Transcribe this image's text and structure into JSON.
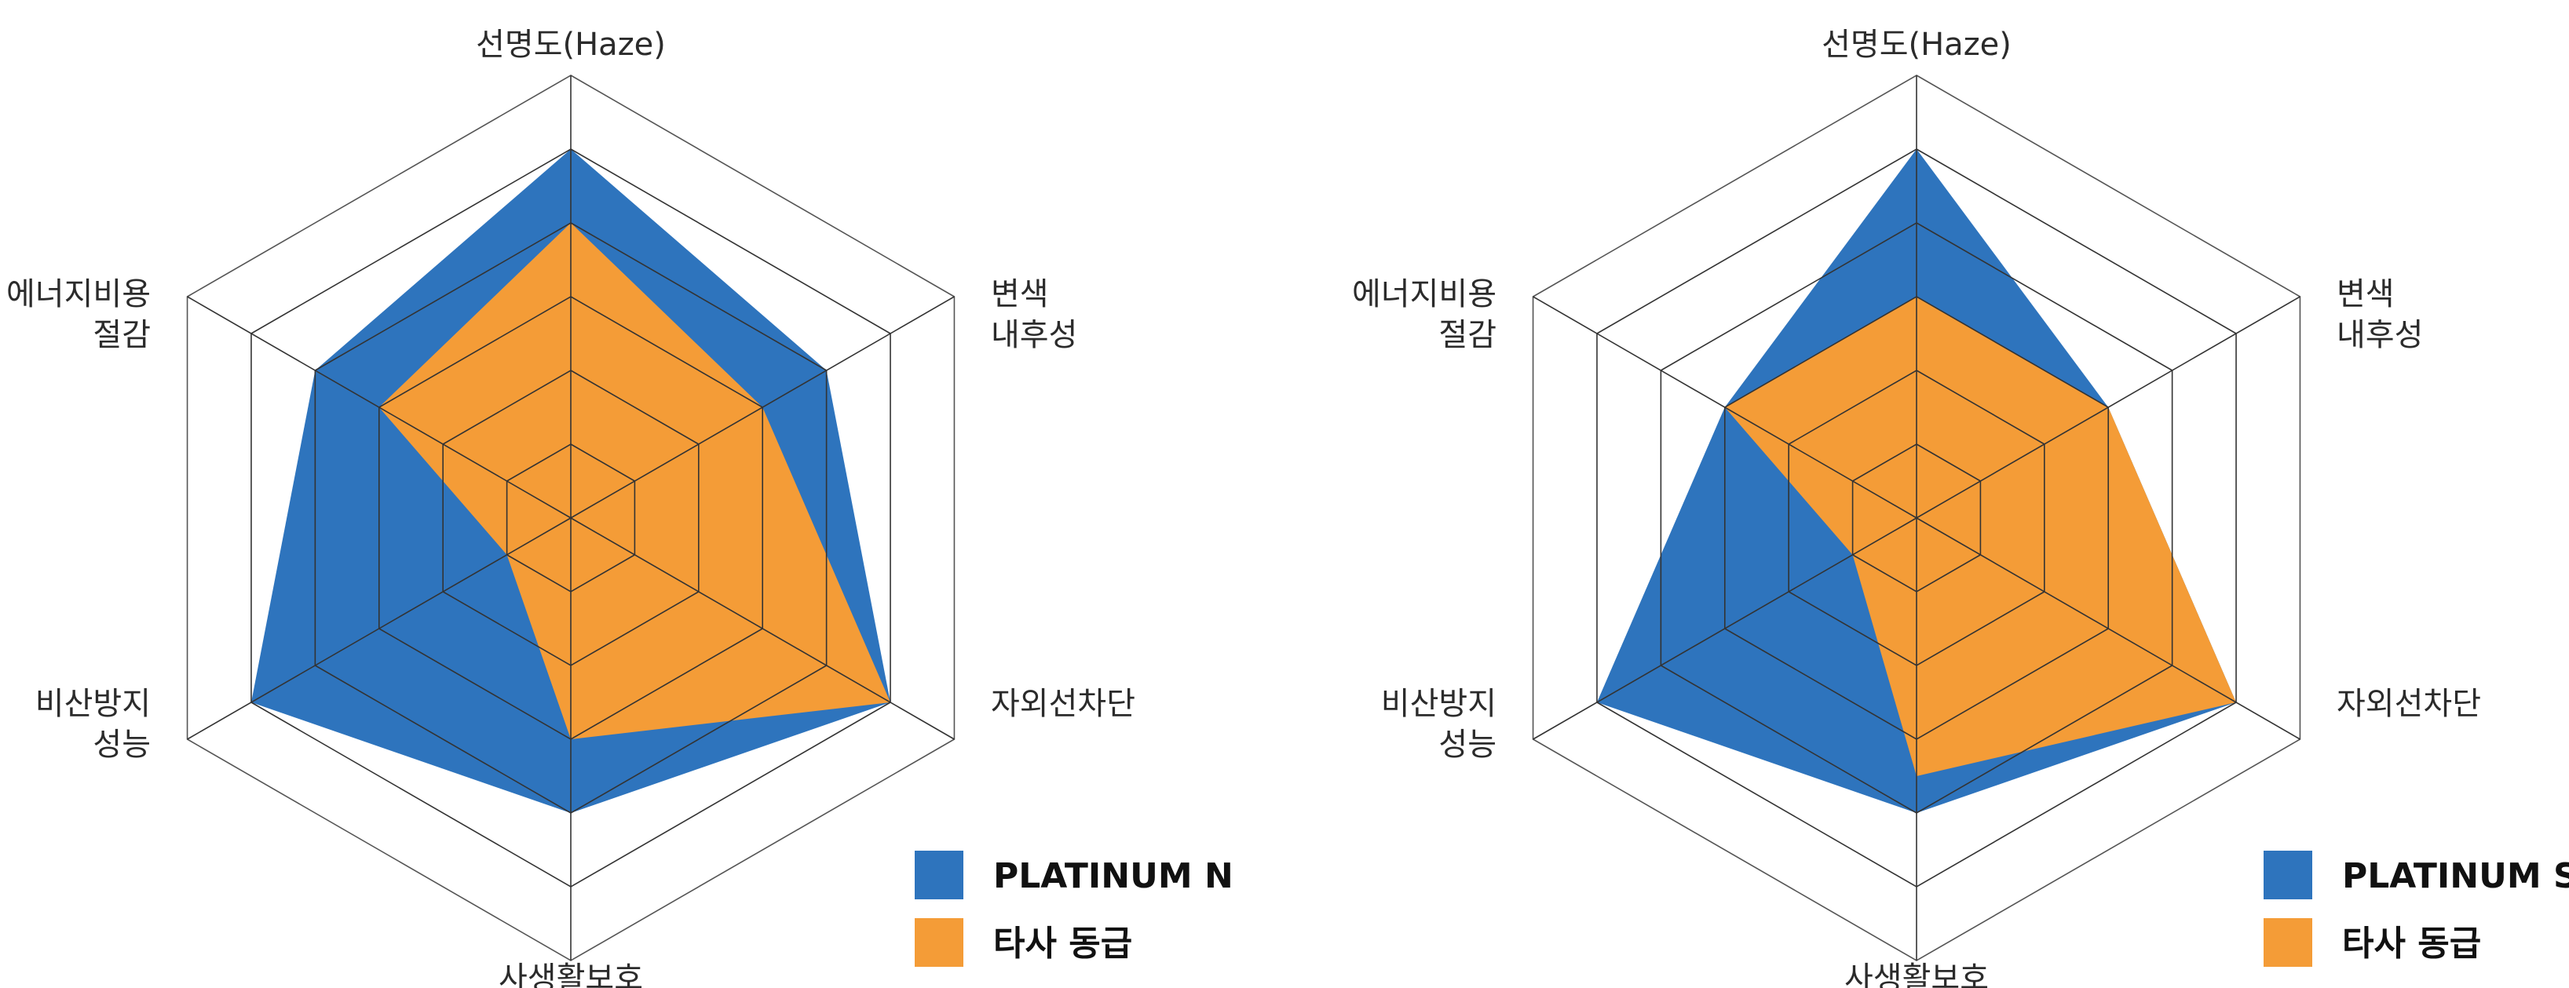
{
  "chart_data": [
    {
      "type": "radar",
      "axes": [
        "선명도(Haze)",
        "변색 내후성",
        "자외선차단",
        "사생활보호",
        "비산방지 성능",
        "에너지비용 절감"
      ],
      "axis_label_lines": [
        [
          "선명도(Haze)"
        ],
        [
          "변색",
          "내후성"
        ],
        [
          "자외선차단"
        ],
        [
          "사생활보호"
        ],
        [
          "비산방지",
          "성능"
        ],
        [
          "에너지비용",
          "절감"
        ]
      ],
      "rlim": [
        0,
        6
      ],
      "grid_levels": 5,
      "series": [
        {
          "name": "PLATINUM N",
          "color": "#2e74bd",
          "values": [
            5,
            4,
            5,
            4,
            5,
            4
          ]
        },
        {
          "name": "타사 동급",
          "color": "#f49c37",
          "values": [
            4,
            3,
            5,
            3,
            1,
            3
          ]
        }
      ],
      "legend_position": "bottom-right"
    },
    {
      "type": "radar",
      "axes": [
        "선명도(Haze)",
        "변색 내후성",
        "자외선차단",
        "사생활보호",
        "비산방지 성능",
        "에너지비용 절감"
      ],
      "axis_label_lines": [
        [
          "선명도(Haze)"
        ],
        [
          "변색",
          "내후성"
        ],
        [
          "자외선차단"
        ],
        [
          "사생활보호"
        ],
        [
          "비산방지",
          "성능"
        ],
        [
          "에너지비용",
          "절감"
        ]
      ],
      "rlim": [
        0,
        6
      ],
      "grid_levels": 5,
      "series": [
        {
          "name": "PLATINUM S",
          "color": "#2e74bd",
          "values": [
            5,
            3,
            5,
            4,
            5,
            3
          ]
        },
        {
          "name": "타사 동급",
          "color": "#f49c37",
          "values": [
            3,
            3,
            5,
            3.5,
            1,
            3
          ]
        }
      ],
      "legend_position": "bottom-right"
    }
  ]
}
